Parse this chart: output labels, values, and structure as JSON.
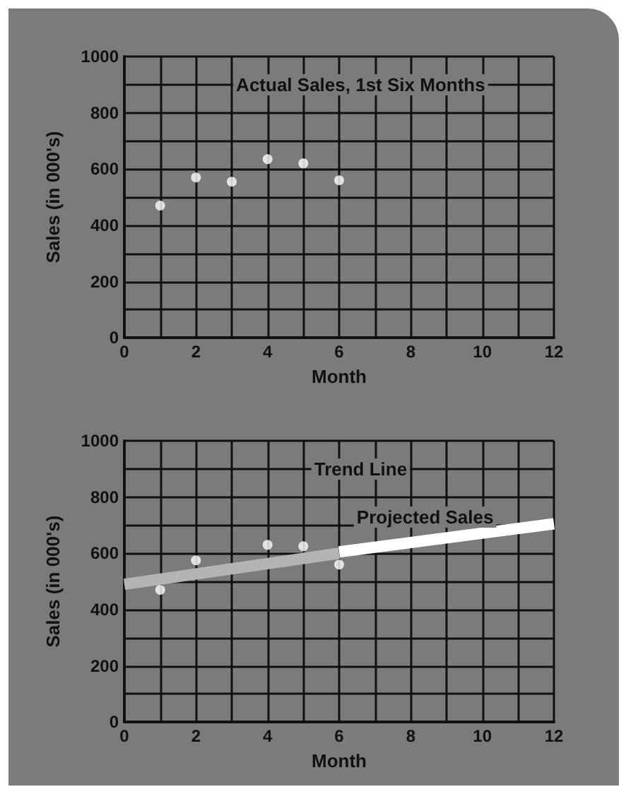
{
  "chart_data": [
    {
      "type": "scatter",
      "xlabel": "Month",
      "ylabel": "Sales (in 000's)",
      "annotations": [
        "Actual Sales, 1st Six Months"
      ],
      "series": [
        {
          "color": "#ffffff",
          "marker": "circle",
          "x": [
            1,
            2,
            3,
            4,
            5,
            6
          ],
          "values": [
            470,
            570,
            555,
            635,
            620,
            560
          ]
        }
      ],
      "xlim": [
        0,
        12
      ],
      "xticks": [
        0,
        {
          "value": 1,
          "label": null
        },
        2,
        {
          "value": 3,
          "label": null
        },
        4,
        {
          "value": 5,
          "label": null
        },
        6,
        {
          "value": 7,
          "label": null
        },
        8,
        {
          "value": 9,
          "label": null
        },
        10,
        {
          "value": 11,
          "label": null
        },
        12
      ],
      "ylim": [
        0,
        1000
      ],
      "yticks": [
        0,
        {
          "value": 100,
          "label": null
        },
        200,
        {
          "value": 300,
          "label": null
        },
        400,
        {
          "value": 500,
          "label": null
        },
        600,
        {
          "value": 700,
          "label": null
        },
        800,
        {
          "value": 900,
          "label": null
        },
        1000
      ],
      "grid": true
    },
    {
      "type": "scatter",
      "xlabel": "Month",
      "ylabel": "Sales (in 000's)",
      "annotations": [
        "Trend Line",
        "Projected Sales"
      ],
      "series": [
        {
          "type": "line",
          "color": "#b4b4b4",
          "x": [
            0,
            6
          ],
          "values": [
            490,
            600
          ]
        },
        {
          "type": "line",
          "color": "#ffffff",
          "x": [
            6,
            12
          ],
          "values": [
            605,
            705
          ]
        },
        {
          "color": "#ffffff",
          "marker": "circle",
          "x": [
            1,
            2,
            4,
            5,
            6
          ],
          "values": [
            470,
            575,
            630,
            625,
            560
          ]
        }
      ],
      "xlim": [
        0,
        12
      ],
      "xticks": [
        0,
        {
          "value": 1,
          "label": null
        },
        2,
        {
          "value": 3,
          "label": null
        },
        4,
        {
          "value": 5,
          "label": null
        },
        6,
        {
          "value": 7,
          "label": null
        },
        8,
        {
          "value": 9,
          "label": null
        },
        10,
        {
          "value": 11,
          "label": null
        },
        12
      ],
      "ylim": [
        0,
        1000
      ],
      "yticks": [
        0,
        {
          "value": 100,
          "label": null
        },
        200,
        {
          "value": 300,
          "label": null
        },
        400,
        {
          "value": 500,
          "label": null
        },
        600,
        {
          "value": 700,
          "label": null
        },
        800,
        {
          "value": 900,
          "label": null
        },
        1000
      ],
      "grid": true
    }
  ]
}
